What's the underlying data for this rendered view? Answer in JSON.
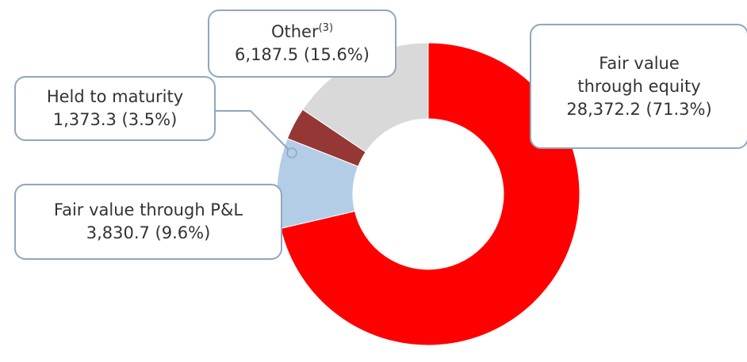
{
  "chart_data": {
    "type": "donut",
    "categories": [
      "Fair value through equity",
      "Fair value through P&L",
      "Held to maturity",
      "Other"
    ],
    "category_notes": [
      null,
      null,
      null,
      "(3)"
    ],
    "values": [
      28372.2,
      3830.7,
      1373.3,
      6187.5
    ],
    "value_labels": [
      "28,372.2 (71.3%)",
      "3,830.7 (9.6%)",
      "1,373.3 (3.5%)",
      "6,187.5 (15.6%)"
    ],
    "colors": [
      "#ff0000",
      "#b4cde6",
      "#953735",
      "#d9d9d9"
    ]
  }
}
